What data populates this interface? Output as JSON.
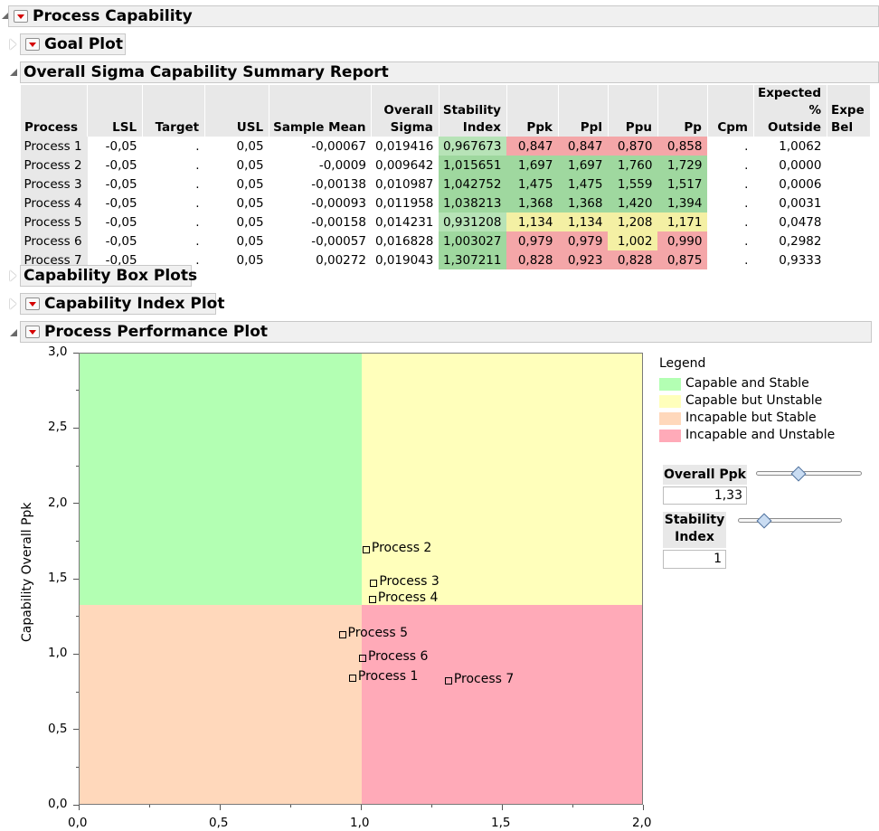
{
  "sections": {
    "process_capability": "Process Capability",
    "goal_plot": "Goal Plot",
    "summary_report": "Overall Sigma Capability Summary Report",
    "box_plots": "Capability Box Plots",
    "index_plot": "Capability Index Plot",
    "performance_plot": "Process Performance Plot"
  },
  "table": {
    "headers": {
      "process": "Process",
      "lsl": "LSL",
      "target": "Target",
      "usl": "USL",
      "sample_mean": "Sample Mean",
      "overall_sigma_1": "Overall",
      "overall_sigma_2": "Sigma",
      "stability_1": "Stability",
      "stability_2": "Index",
      "ppk": "Ppk",
      "ppl": "Ppl",
      "ppu": "Ppu",
      "pp": "Pp",
      "cpm": "Cpm",
      "expected_1": "Expected",
      "expected_2": "% Outside",
      "below_1": "Expe",
      "below_2": "Bel"
    },
    "rows": [
      {
        "process": "Process 1",
        "lsl": "-0,05",
        "target": ".",
        "usl": "0,05",
        "mean": "-0,00067",
        "sigma": "0,019416",
        "stab": "0,967673",
        "ppk": "0,847",
        "ppl": "0,847",
        "ppu": "0,870",
        "pp": "0,858",
        "cpm": ".",
        "outside": "1,0062"
      },
      {
        "process": "Process 2",
        "lsl": "-0,05",
        "target": ".",
        "usl": "0,05",
        "mean": "-0,0009",
        "sigma": "0,009642",
        "stab": "1,015651",
        "ppk": "1,697",
        "ppl": "1,697",
        "ppu": "1,760",
        "pp": "1,729",
        "cpm": ".",
        "outside": "0,0000"
      },
      {
        "process": "Process 3",
        "lsl": "-0,05",
        "target": ".",
        "usl": "0,05",
        "mean": "-0,00138",
        "sigma": "0,010987",
        "stab": "1,042752",
        "ppk": "1,475",
        "ppl": "1,475",
        "ppu": "1,559",
        "pp": "1,517",
        "cpm": ".",
        "outside": "0,0006"
      },
      {
        "process": "Process 4",
        "lsl": "-0,05",
        "target": ".",
        "usl": "0,05",
        "mean": "-0,00093",
        "sigma": "0,011958",
        "stab": "1,038213",
        "ppk": "1,368",
        "ppl": "1,368",
        "ppu": "1,420",
        "pp": "1,394",
        "cpm": ".",
        "outside": "0,0031"
      },
      {
        "process": "Process 5",
        "lsl": "-0,05",
        "target": ".",
        "usl": "0,05",
        "mean": "-0,00158",
        "sigma": "0,014231",
        "stab": "0,931208",
        "ppk": "1,134",
        "ppl": "1,134",
        "ppu": "1,208",
        "pp": "1,171",
        "cpm": ".",
        "outside": "0,0478"
      },
      {
        "process": "Process 6",
        "lsl": "-0,05",
        "target": ".",
        "usl": "0,05",
        "mean": "-0,00057",
        "sigma": "0,016828",
        "stab": "1,003027",
        "ppk": "0,979",
        "ppl": "0,979",
        "ppu": "1,002",
        "pp": "0,990",
        "cpm": ".",
        "outside": "0,2982"
      },
      {
        "process": "Process 7",
        "lsl": "-0,05",
        "target": ".",
        "usl": "0,05",
        "mean": "0,00272",
        "sigma": "0,019043",
        "stab": "1,307211",
        "ppk": "0,828",
        "ppl": "0,923",
        "ppu": "0,828",
        "pp": "0,875",
        "cpm": ".",
        "outside": "0,9333"
      }
    ]
  },
  "colors": {
    "capable_stable": "#b3ffb3",
    "capable_unstable": "#ffffbb",
    "incapable_stable": "#ffd8bb",
    "incapable_unstable": "#ffaab8",
    "cell_green": "#9fd89f",
    "cell_yellow": "#f4f0a4",
    "cell_red": "#f4a6a8"
  },
  "chart_data": {
    "type": "scatter",
    "xlabel": "",
    "ylabel": "Capability Overall Ppk",
    "xlim": [
      0,
      2
    ],
    "ylim": [
      0,
      3
    ],
    "x_ticks": [
      "0,0",
      "0,5",
      "1,0",
      "1,5",
      "2,0"
    ],
    "y_ticks": [
      "0,0",
      "0,5",
      "1,0",
      "1,5",
      "2,0",
      "2,5",
      "3,0"
    ],
    "thresholds": {
      "stability_index": 1,
      "overall_ppk": 1.33
    },
    "points": [
      {
        "label": "Process 1",
        "x": 0.967673,
        "y": 0.847
      },
      {
        "label": "Process 2",
        "x": 1.015651,
        "y": 1.697
      },
      {
        "label": "Process 3",
        "x": 1.042752,
        "y": 1.475
      },
      {
        "label": "Process 4",
        "x": 1.038213,
        "y": 1.368
      },
      {
        "label": "Process 5",
        "x": 0.931208,
        "y": 1.134
      },
      {
        "label": "Process 6",
        "x": 1.003027,
        "y": 0.979
      },
      {
        "label": "Process 7",
        "x": 1.307211,
        "y": 0.828
      }
    ],
    "legend": {
      "title": "Legend",
      "placement": "right",
      "items": [
        "Capable and Stable",
        "Capable but Unstable",
        "Incapable but Stable",
        "Incapable and Unstable"
      ]
    }
  },
  "controls": {
    "overall_ppk_label": "Overall Ppk",
    "overall_ppk_value": "1,33",
    "stability_label_1": "Stability",
    "stability_label_2": "Index",
    "stability_value": "1"
  }
}
